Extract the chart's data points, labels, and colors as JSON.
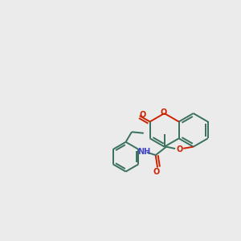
{
  "bg_color": "#ebebeb",
  "bond_color": "#3a7060",
  "o_color": "#cc2200",
  "n_color": "#4444cc",
  "lw": 1.4,
  "figsize": [
    3.0,
    3.0
  ],
  "dpi": 100,
  "xlim": [
    0,
    10
  ],
  "ylim": [
    2.5,
    8.5
  ]
}
